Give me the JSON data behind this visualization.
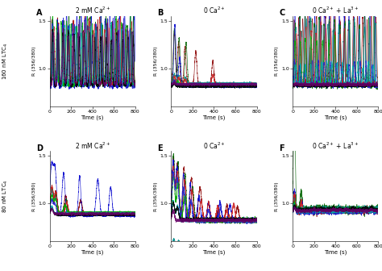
{
  "panels": [
    {
      "label": "A",
      "title": "2 mM Ca$^{2+}$",
      "row": 0,
      "col": 0,
      "pattern": "A"
    },
    {
      "label": "B",
      "title": "0 Ca$^{2+}$",
      "row": 0,
      "col": 1,
      "pattern": "B"
    },
    {
      "label": "C",
      "title": "0 Ca$^{2+}$ + La$^{3+}$",
      "row": 0,
      "col": 2,
      "pattern": "C"
    },
    {
      "label": "D",
      "title": "2 mM Ca$^{2+}$",
      "row": 1,
      "col": 0,
      "pattern": "D"
    },
    {
      "label": "E",
      "title": "0 Ca$^{2+}$",
      "row": 1,
      "col": 1,
      "pattern": "E"
    },
    {
      "label": "F",
      "title": "0 Ca$^{2+}$ + La$^{3+}$",
      "row": 1,
      "col": 2,
      "pattern": "F"
    }
  ],
  "colors": [
    "#8B0000",
    "#006400",
    "#00008B",
    "#008B8B",
    "#CC0000",
    "#00AA00",
    "#0000CC",
    "#00AAAA",
    "#000000",
    "#660066"
  ],
  "ylabel": "R (356/380)",
  "top_left_ylabel": "160 nM LTC$_4$",
  "bottom_left_ylabel": "80 nM LTC$_4$",
  "xlabel": "Time (s)",
  "ylim": [
    0.6,
    1.55
  ],
  "xlim": [
    0,
    800
  ],
  "xticks": [
    0,
    200,
    400,
    600,
    800
  ],
  "yticks": [
    1.0,
    1.5
  ],
  "figsize": [
    4.74,
    3.36
  ],
  "dpi": 100
}
